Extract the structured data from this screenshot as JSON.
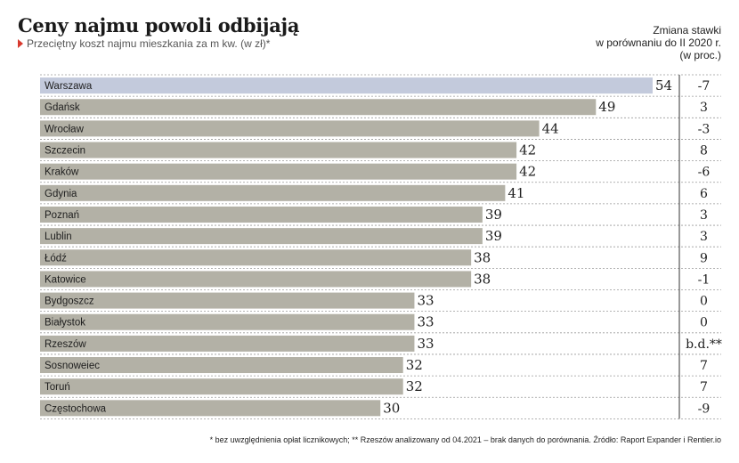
{
  "header": {
    "title": "Ceny najmu powoli odbijają",
    "subtitle": "Przeciętny koszt najmu mieszkania za m kw. (w zł)*",
    "change_label_lines": [
      "Zmiana stawki",
      "w porównaniu do II 2020 r.",
      "(w proc.)"
    ]
  },
  "chart_data": {
    "type": "bar",
    "orientation": "horizontal",
    "categories": [
      "Warszawa",
      "Gdańsk",
      "Wrocław",
      "Szczecin",
      "Kraków",
      "Gdynia",
      "Poznań",
      "Lublin",
      "Łódź",
      "Katowice",
      "Bydgoszcz",
      "Białystok",
      "Rzeszów",
      "Sosnoweiec",
      "Toruń",
      "Częstochowa"
    ],
    "values": [
      54,
      49,
      44,
      42,
      42,
      41,
      39,
      39,
      38,
      38,
      33,
      33,
      33,
      32,
      32,
      30
    ],
    "change": [
      "-7",
      "3",
      "-3",
      "8",
      "-6",
      "6",
      "3",
      "3",
      "9",
      "-1",
      "0",
      "0",
      "b.d.**",
      "7",
      "7",
      "-9"
    ],
    "highlight": "Warszawa",
    "xlim": [
      0,
      54
    ],
    "colors": {
      "bar": "#b3b1a6",
      "highlight": "#c3cadc"
    }
  },
  "footnote": "* bez uwzględnienia opłat licznikowych; ** Rzeszów analizowany od 04.2021 – brak danych do porównania. Źródło: Raport Expander i Rentier.io"
}
